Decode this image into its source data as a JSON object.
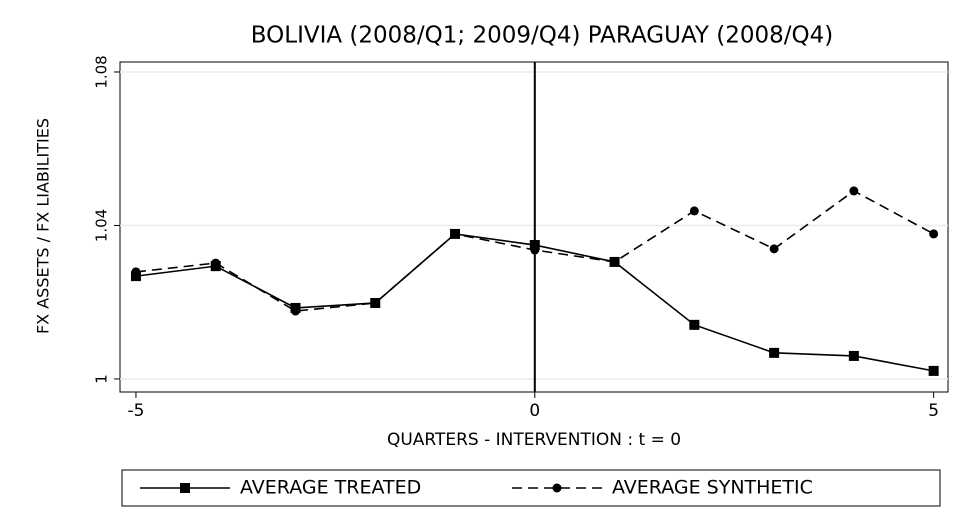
{
  "chart_data": {
    "type": "line",
    "title": "BOLIVIA (2008/Q1; 2009/Q4) PARAGUAY (2008/Q4)",
    "x_label": "QUARTERS - INTERVENTION : t = 0",
    "y_label": "FX ASSETS / FX LIABILITIES",
    "x": [
      -5,
      -4,
      -3,
      -2,
      -1,
      0,
      1,
      2,
      3,
      4,
      5
    ],
    "series": [
      {
        "name": "AVERAGE TREATED",
        "color": "#000000",
        "dash": "solid",
        "marker": "square",
        "values": [
          1.0268,
          1.0294,
          1.0185,
          1.0198,
          1.0378,
          1.0349,
          1.0305,
          1.0141,
          1.0068,
          1.006,
          1.0021
        ]
      },
      {
        "name": "AVERAGE SYNTHETIC",
        "color": "#000000",
        "dash": "dashed",
        "marker": "circle",
        "values": [
          1.0279,
          1.0302,
          1.0177,
          1.0198,
          1.0378,
          1.0336,
          1.0305,
          1.0438,
          1.0339,
          1.049,
          1.0378
        ]
      }
    ],
    "xlim": [
      -5.2,
      5.18
    ],
    "ylim": [
      0.9966,
      1.0826
    ],
    "xticks": [
      -5,
      0,
      5
    ],
    "yticks": [
      1,
      1.04,
      1.08
    ],
    "xline": 0,
    "grid": true,
    "legend": "bottom"
  }
}
